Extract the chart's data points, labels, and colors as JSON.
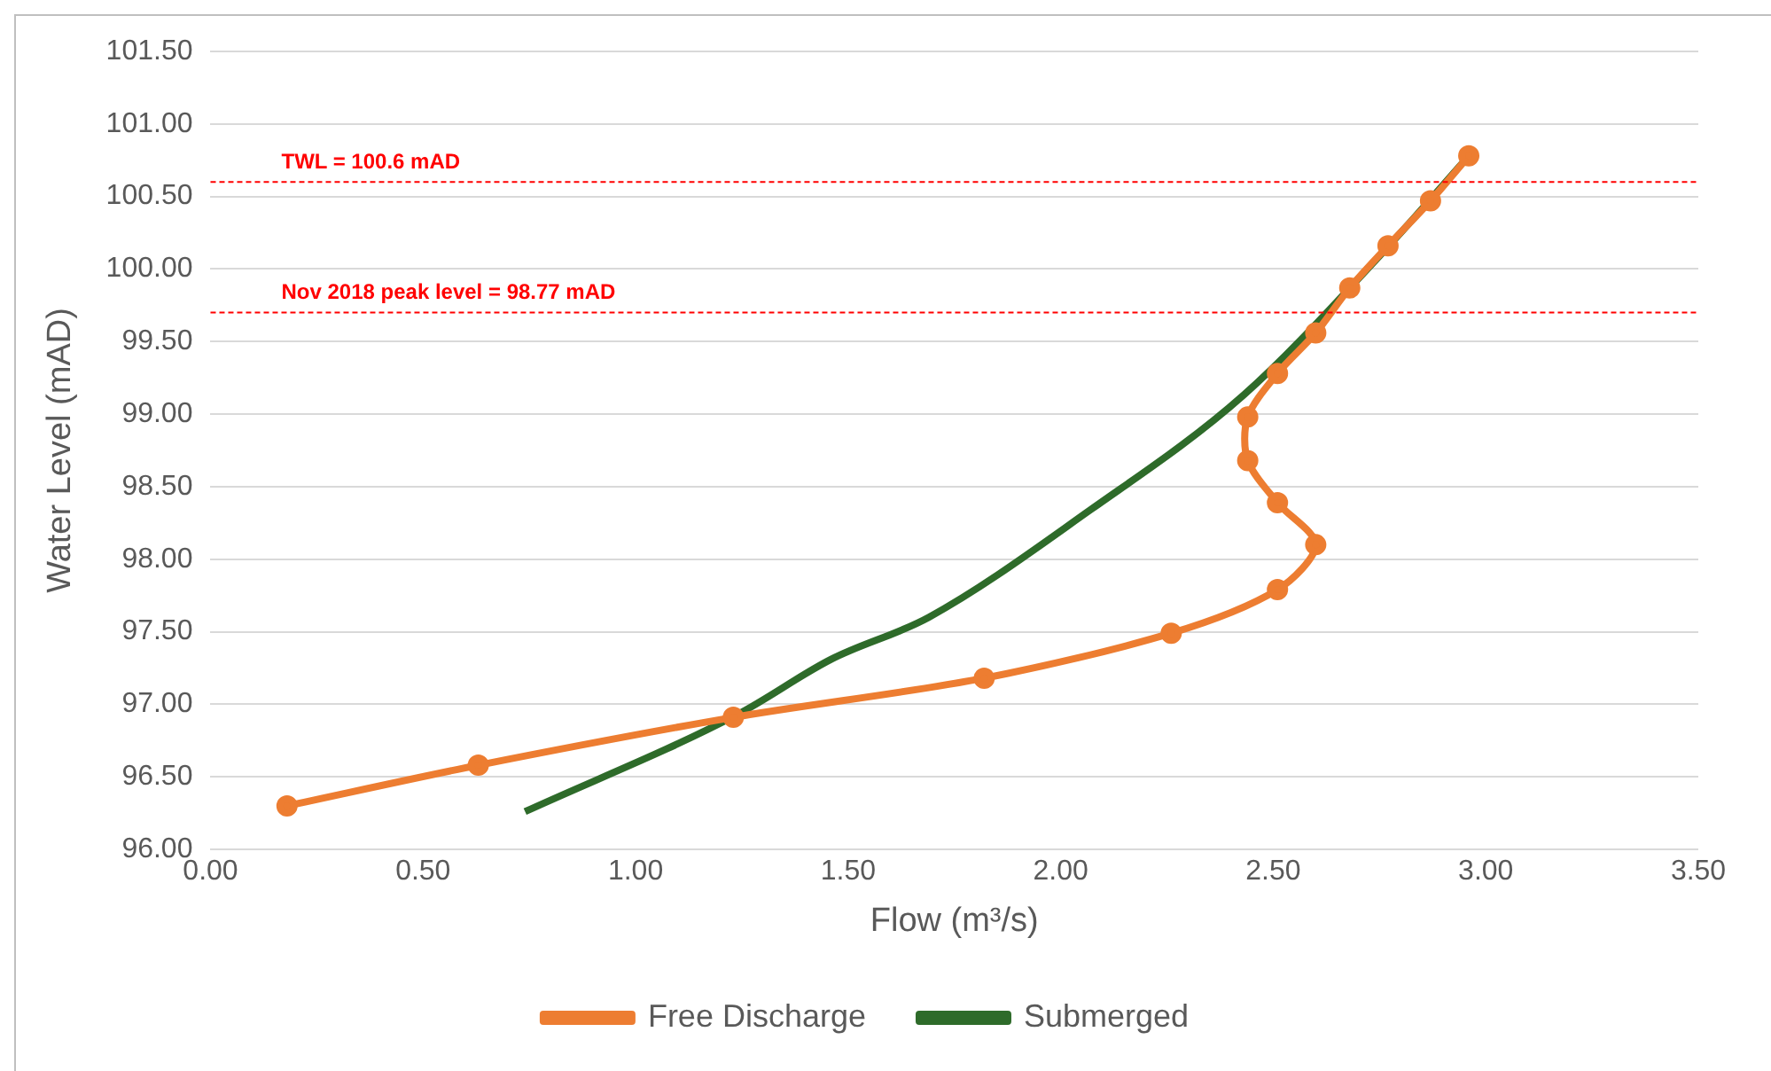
{
  "chart_data": {
    "type": "line",
    "xlabel": "Flow (m³/s)",
    "ylabel": "Water Level (mAD)",
    "xlim": [
      0,
      3.5
    ],
    "xticks": [
      {
        "value": 0,
        "label": "0.00"
      },
      {
        "value": 0.5,
        "label": "0.50"
      },
      {
        "value": 1,
        "label": "1.00"
      },
      {
        "value": 1.5,
        "label": "1.50"
      },
      {
        "value": 2,
        "label": "2.00"
      },
      {
        "value": 2.5,
        "label": "2.50"
      },
      {
        "value": 3,
        "label": "3.00"
      },
      {
        "value": 3.5,
        "label": "3.50"
      }
    ],
    "ylim": [
      96,
      101.5
    ],
    "yticks": [
      {
        "value": 96,
        "label": "96.00"
      },
      {
        "value": 96.5,
        "label": "96.50"
      },
      {
        "value": 97,
        "label": "97.00"
      },
      {
        "value": 97.5,
        "label": "97.50"
      },
      {
        "value": 98,
        "label": "98.00"
      },
      {
        "value": 98.5,
        "label": "98.50"
      },
      {
        "value": 99,
        "label": "99.00"
      },
      {
        "value": 99.5,
        "label": "99.50"
      },
      {
        "value": 100,
        "label": "100.00"
      },
      {
        "value": 100.5,
        "label": "100.50"
      },
      {
        "value": 101,
        "label": "101.00"
      },
      {
        "value": 101.5,
        "label": "101.50"
      }
    ],
    "grid": "y",
    "legend": "bottom",
    "series": [
      {
        "name": "Free Discharge",
        "color": "#ed7d31",
        "marker": "circle",
        "x": [
          0.18,
          0.63,
          1.23,
          1.82,
          2.26,
          2.51,
          2.6,
          2.51,
          2.44,
          2.44,
          2.51,
          2.6,
          2.68,
          2.77,
          2.87,
          2.96
        ],
        "values": [
          96.3,
          96.58,
          96.91,
          97.18,
          97.49,
          97.79,
          98.1,
          98.39,
          98.68,
          98.98,
          99.28,
          99.56,
          99.87,
          100.16,
          100.47,
          100.78
        ]
      },
      {
        "name": "Submerged",
        "color": "#2e6b2a",
        "marker": "none",
        "x": [
          0.74,
          1.24,
          1.46,
          1.69,
          2.07,
          2.43,
          2.75,
          2.96
        ],
        "values": [
          96.26,
          96.93,
          97.31,
          97.6,
          98.34,
          99.13,
          100.09,
          100.78
        ]
      }
    ],
    "ref_lines": [
      {
        "axis": "y",
        "value": 100.6,
        "label": "TWL = 100.6 mAD",
        "color": "#ff0000",
        "line_style": "dashed"
      },
      {
        "axis": "y",
        "value": 99.7,
        "color": "#ff0000",
        "line_style": "dashed"
      }
    ],
    "annotations": [
      "Nov 2018 peak level = 98.77 mAD"
    ]
  }
}
